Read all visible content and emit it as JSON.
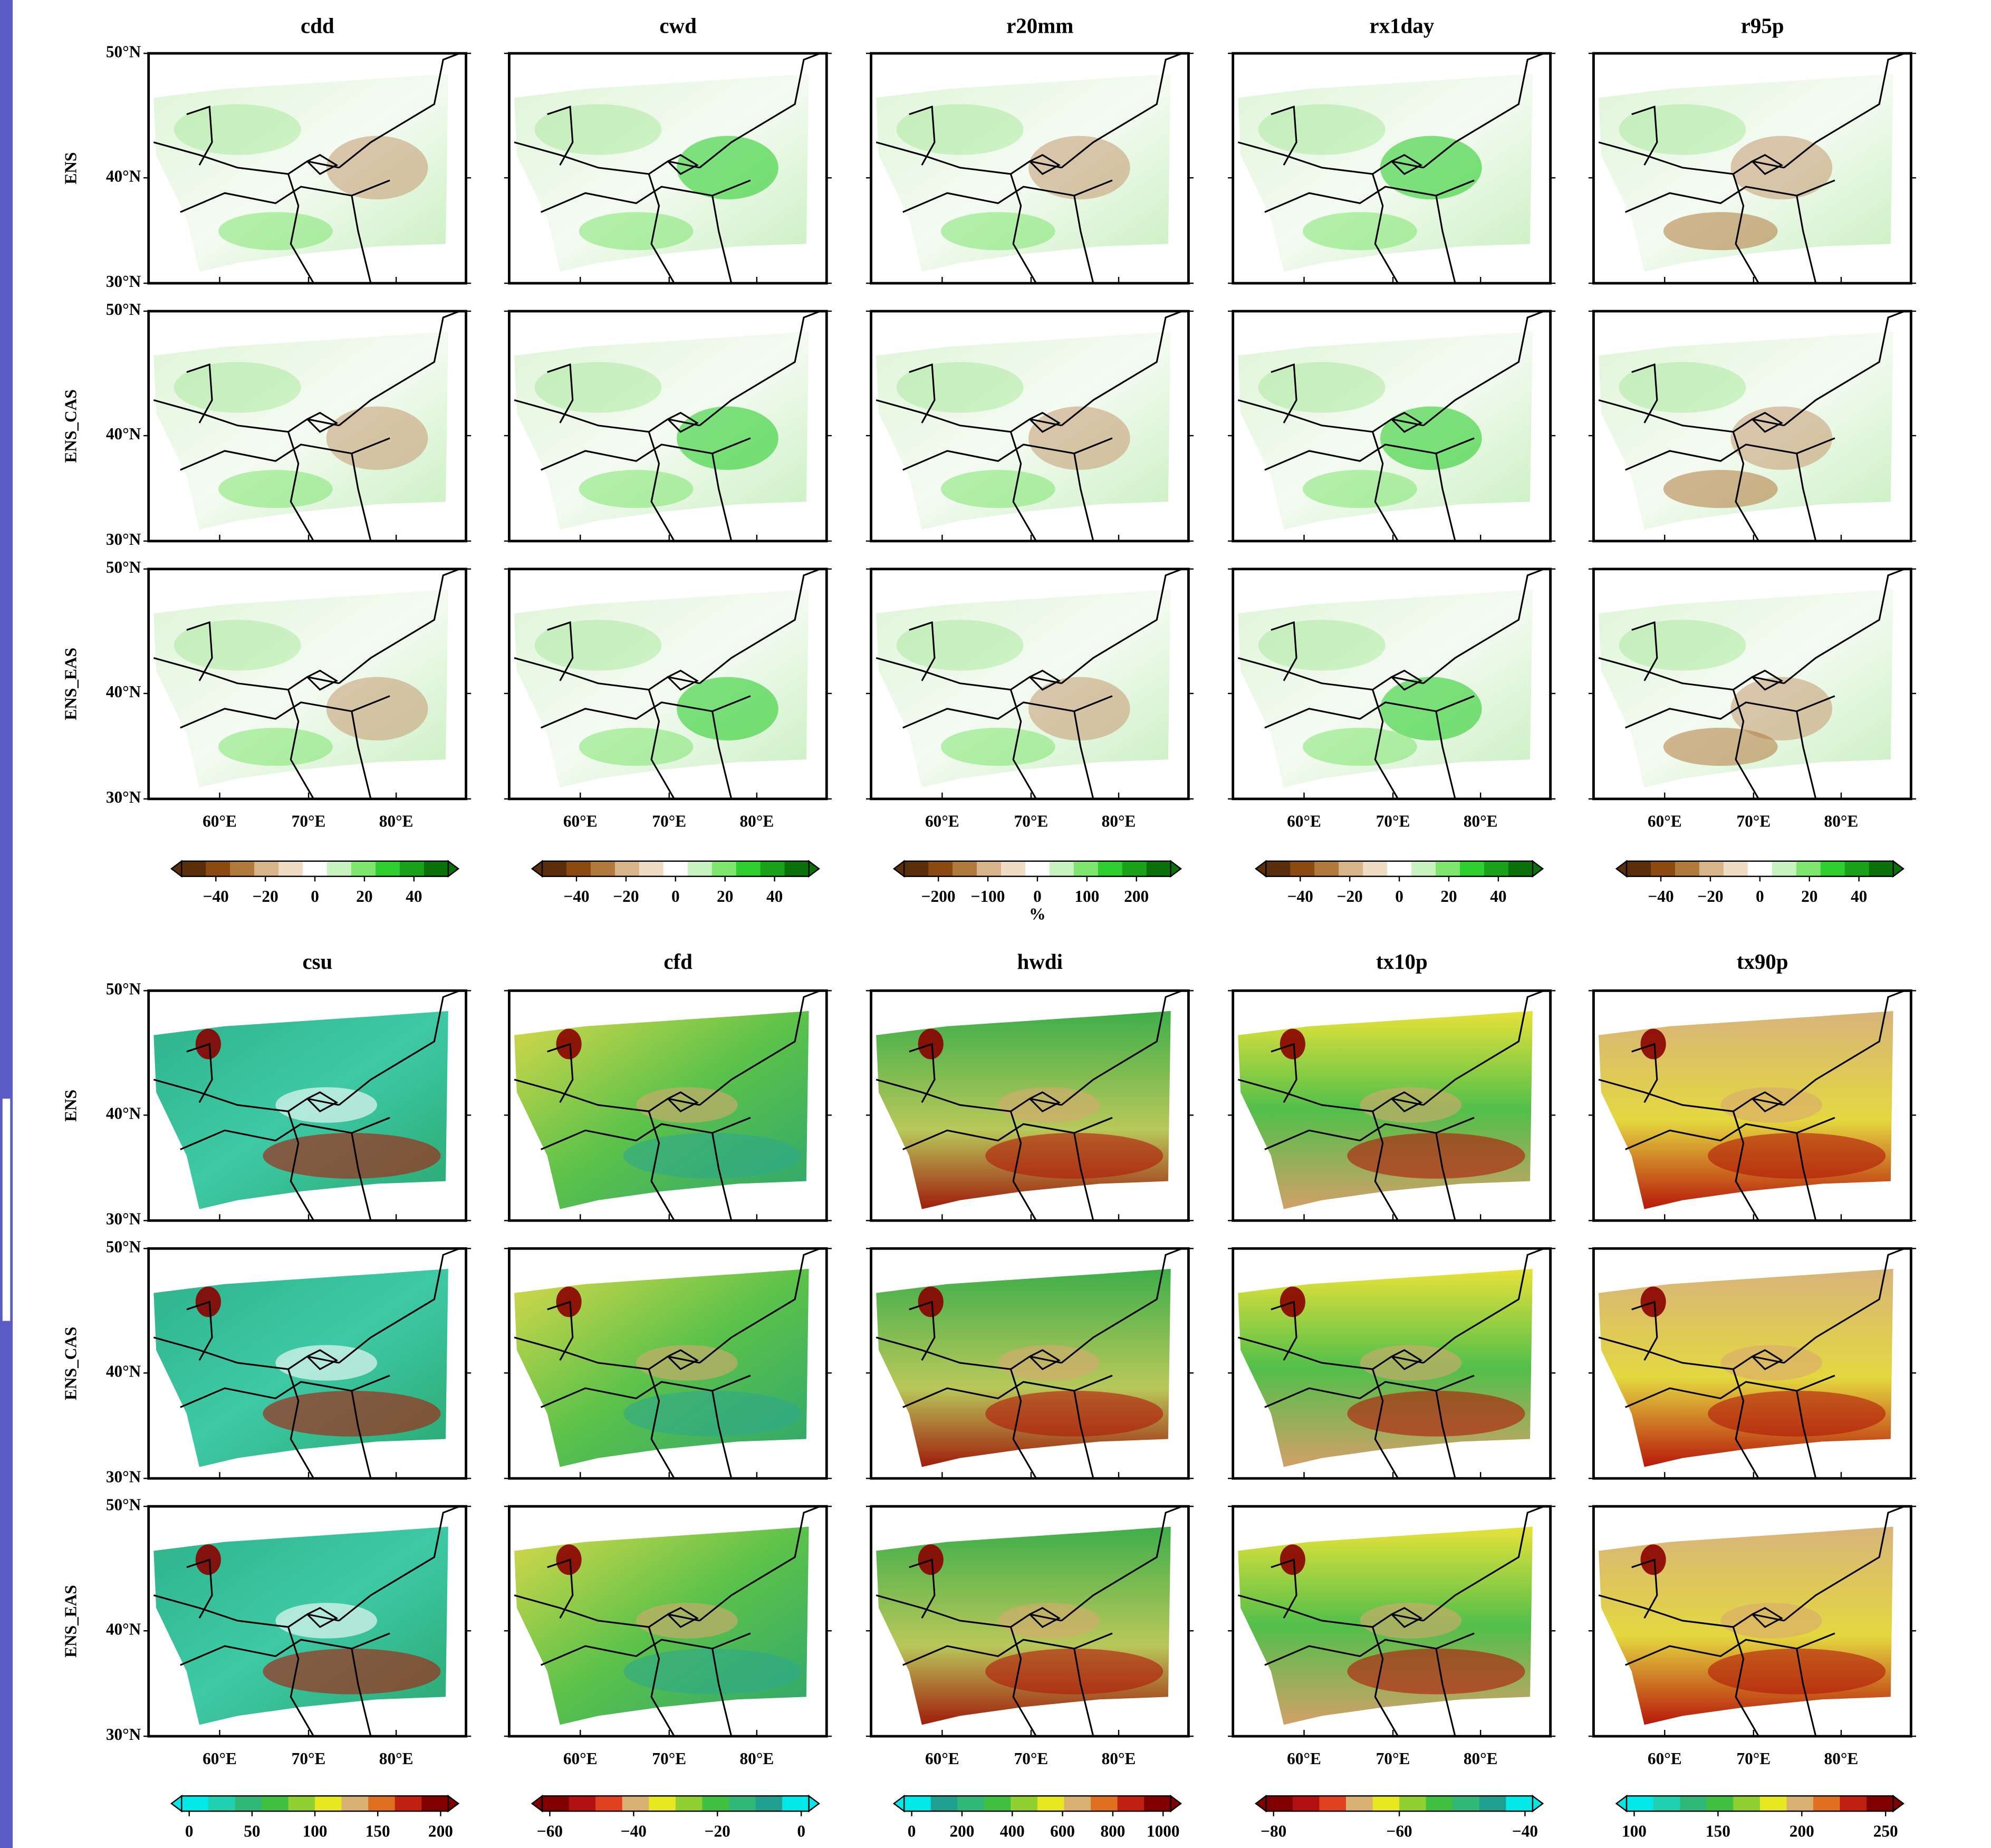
{
  "lat_labels": [
    "50°N",
    "40°N",
    "30°N"
  ],
  "lon_labels": [
    "60°E",
    "70°E",
    "80°E"
  ],
  "blocks": [
    {
      "columns": [
        "cdd",
        "cwd",
        "r20mm",
        "rx1day",
        "r95p"
      ],
      "rows": [
        "ENS",
        "ENS_CAS",
        "ENS_EAS"
      ],
      "colorbars": [
        {
          "ticks": [
            "−40",
            "−20",
            "0",
            "20",
            "40"
          ]
        },
        {
          "ticks": [
            "−40",
            "−20",
            "0",
            "20",
            "40"
          ]
        },
        {
          "ticks": [
            "−200",
            "−100",
            "0",
            "100",
            "200"
          ],
          "unit": "%"
        },
        {
          "ticks": [
            "−40",
            "−20",
            "0",
            "20",
            "40"
          ]
        },
        {
          "ticks": [
            "−40",
            "−20",
            "0",
            "20",
            "40"
          ]
        }
      ]
    },
    {
      "columns": [
        "csu",
        "cfd",
        "hwdi",
        "tx10p",
        "tx90p"
      ],
      "rows": [
        "ENS",
        "ENS_CAS",
        "ENS_EAS"
      ],
      "colorbars": [
        {
          "ticks": [
            "0",
            "50",
            "100",
            "150",
            "200"
          ]
        },
        {
          "ticks": [
            "−60",
            "−40",
            "−20",
            "0"
          ]
        },
        {
          "ticks": [
            "0",
            "200",
            "400",
            "600",
            "800",
            "1000"
          ]
        },
        {
          "ticks": [
            "−80",
            "−60",
            "−40"
          ]
        },
        {
          "ticks": [
            "100",
            "150",
            "200",
            "250"
          ]
        }
      ]
    }
  ]
}
